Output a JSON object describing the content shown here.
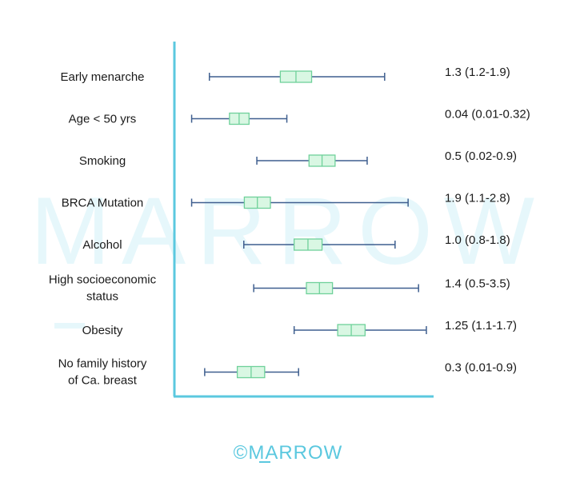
{
  "watermark_text": "MARROW",
  "brand_text": "©MARROW",
  "colors": {
    "axis": "#5bc8df",
    "whisker": "#3f5f8f",
    "box_fill": "#d9f7e3",
    "box_stroke": "#6fd19a",
    "watermark": "#e6f7fb",
    "brand": "#5bc8df"
  },
  "chart_data": {
    "type": "box",
    "title": "",
    "xlabel": "",
    "ylabel": "",
    "xlim": [
      0,
      1
    ],
    "grid": false,
    "rows": [
      {
        "label": [
          "Early menarche"
        ],
        "value_text": "1.3 (1.2-1.9)",
        "whisker": [
          0.128,
          0.8
        ],
        "box": [
          0.4,
          0.52
        ],
        "median": 0.46
      },
      {
        "label": [
          "Age < 50 yrs"
        ],
        "value_text": "0.04 (0.01-0.32)",
        "whisker": [
          0.06,
          0.425
        ],
        "box": [
          0.205,
          0.28
        ],
        "median": 0.242
      },
      {
        "label": [
          "Smoking"
        ],
        "value_text": "0.5 (0.02-0.9)",
        "whisker": [
          0.31,
          0.733
        ],
        "box": [
          0.51,
          0.61
        ],
        "median": 0.56
      },
      {
        "label": [
          "BRCA Mutation"
        ],
        "value_text": "1.9 (1.1-2.8)",
        "whisker": [
          0.06,
          0.89
        ],
        "box": [
          0.262,
          0.362
        ],
        "median": 0.312
      },
      {
        "label": [
          "Alcohol"
        ],
        "value_text": "1.0 (0.8-1.8)",
        "whisker": [
          0.26,
          0.84
        ],
        "box": [
          0.453,
          0.56
        ],
        "median": 0.506
      },
      {
        "label": [
          "High socioeconomic",
          "status"
        ],
        "value_text": "1.4 (0.5-3.5)",
        "whisker": [
          0.298,
          0.93
        ],
        "box": [
          0.5,
          0.6
        ],
        "median": 0.55
      },
      {
        "label": [
          "Obesity"
        ],
        "value_text": "1.25 (1.1-1.7)",
        "whisker": [
          0.453,
          0.96
        ],
        "box": [
          0.62,
          0.725
        ],
        "median": 0.672
      },
      {
        "label": [
          "No family history",
          "of Ca. breast"
        ],
        "value_text": "0.3 (0.01-0.9)",
        "whisker": [
          0.11,
          0.47
        ],
        "box": [
          0.235,
          0.34
        ],
        "median": 0.288
      }
    ]
  }
}
